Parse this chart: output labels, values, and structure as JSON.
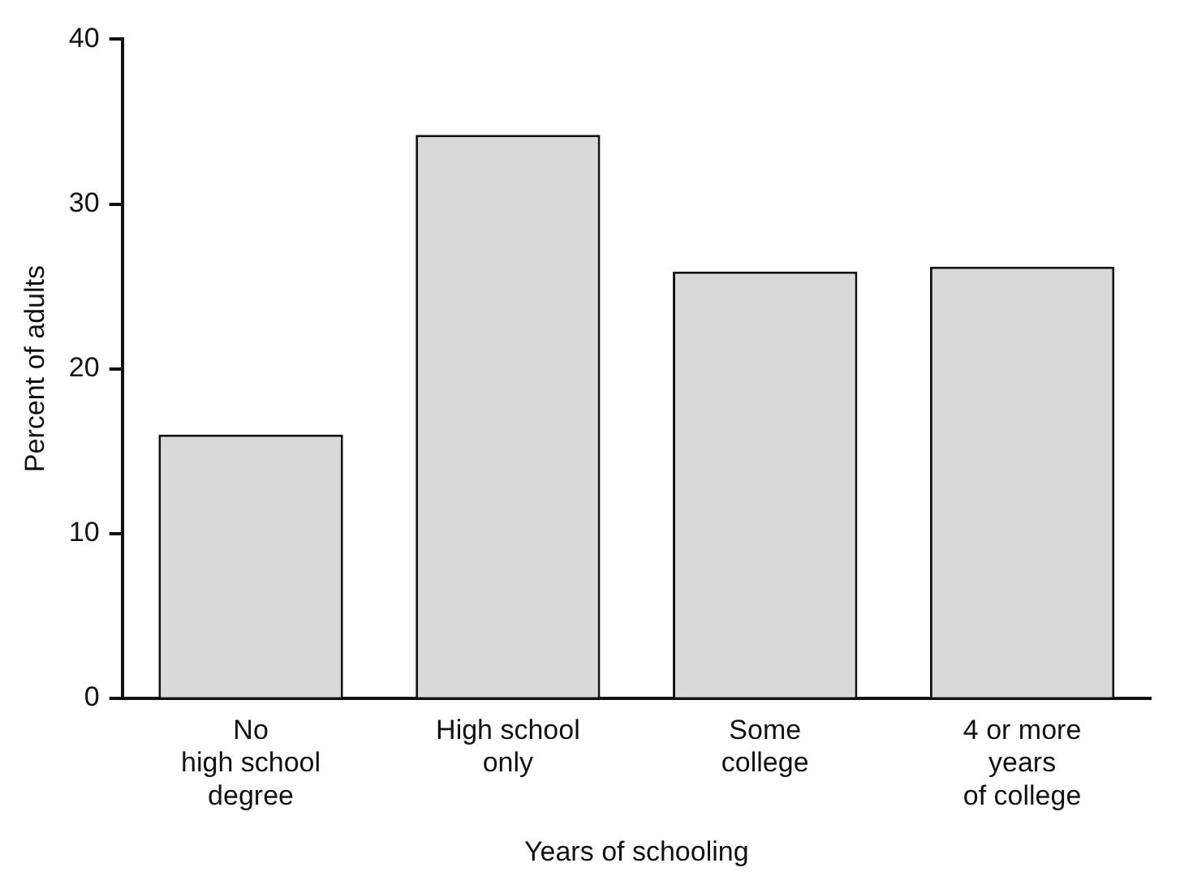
{
  "chart_data": {
    "type": "bar",
    "xlabel": "Years of schooling",
    "ylabel": "Percent of adults",
    "categories": [
      "No\nhigh school\ndegree",
      "High school\nonly",
      "Some\ncollege",
      "4 or more\nyears\nof college"
    ],
    "values": [
      16,
      34.2,
      25.9,
      26.2
    ],
    "color": "#d9d9d9",
    "ylim": [
      0,
      40
    ],
    "yticks": [
      0,
      10,
      20,
      30,
      40
    ],
    "grid": false,
    "legend": false
  }
}
